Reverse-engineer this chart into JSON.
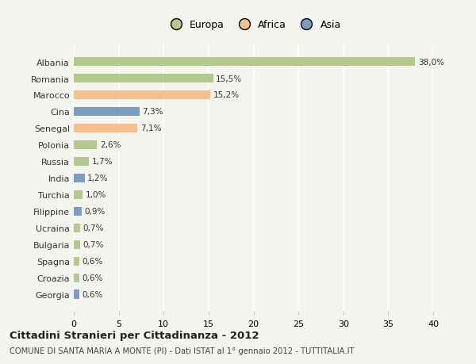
{
  "countries": [
    "Albania",
    "Romania",
    "Marocco",
    "Cina",
    "Senegal",
    "Polonia",
    "Russia",
    "India",
    "Turchia",
    "Filippine",
    "Ucraina",
    "Bulgaria",
    "Spagna",
    "Croazia",
    "Georgia"
  ],
  "values": [
    38.0,
    15.5,
    15.2,
    7.3,
    7.1,
    2.6,
    1.7,
    1.2,
    1.0,
    0.9,
    0.7,
    0.7,
    0.6,
    0.6,
    0.6
  ],
  "labels": [
    "38,0%",
    "15,5%",
    "15,2%",
    "7,3%",
    "7,1%",
    "2,6%",
    "1,7%",
    "1,2%",
    "1,0%",
    "0,9%",
    "0,7%",
    "0,7%",
    "0,6%",
    "0,6%",
    "0,6%"
  ],
  "colors": [
    "#b5c98e",
    "#b5c98e",
    "#f5c08a",
    "#7b9dc2",
    "#f5c08a",
    "#b5c98e",
    "#b5c98e",
    "#7b9dc2",
    "#b5c98e",
    "#7b9dc2",
    "#b5c98e",
    "#b5c98e",
    "#b5c98e",
    "#b5c98e",
    "#7b9dc2"
  ],
  "legend": [
    {
      "label": "Europa",
      "color": "#b5c98e"
    },
    {
      "label": "Africa",
      "color": "#f5c08a"
    },
    {
      "label": "Asia",
      "color": "#7b9dc2"
    }
  ],
  "xlim": [
    0,
    40
  ],
  "xticks": [
    0,
    5,
    10,
    15,
    20,
    25,
    30,
    35,
    40
  ],
  "title": "Cittadini Stranieri per Cittadinanza - 2012",
  "subtitle": "COMUNE DI SANTA MARIA A MONTE (PI) - Dati ISTAT al 1° gennaio 2012 - TUTTITALIA.IT",
  "bg_color": "#f5f5f0",
  "grid_color": "#ffffff",
  "bar_height": 0.55
}
